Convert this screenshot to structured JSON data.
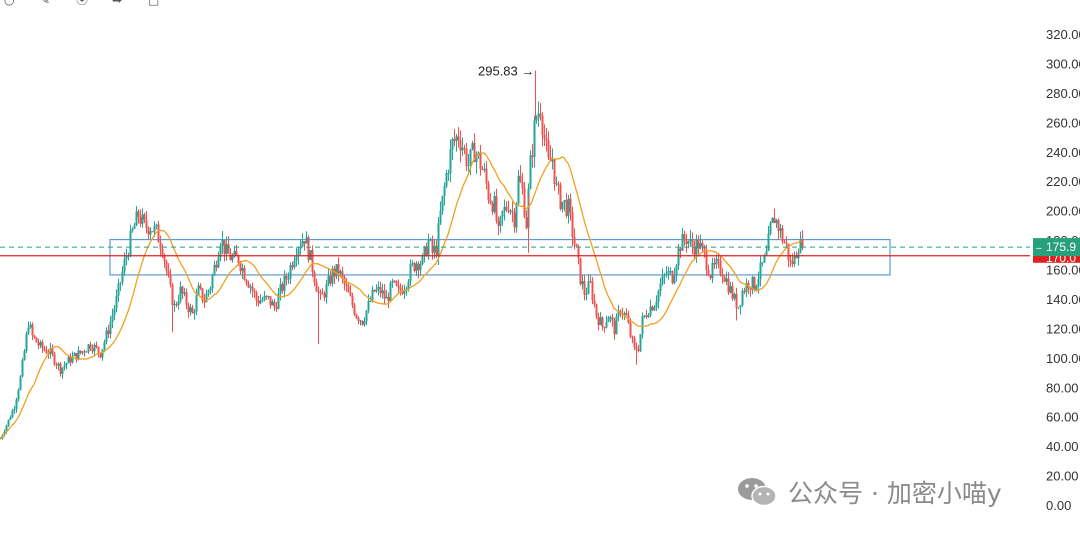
{
  "toolbar": {
    "icons": [
      "cursor-icon",
      "pencil-icon",
      "magnet-icon",
      "pin-icon",
      "trash-icon"
    ]
  },
  "chart_data": {
    "type": "candlestick",
    "title": "",
    "y_axis": {
      "position": "right",
      "ticks": [
        "320.00",
        "300.00",
        "280.00",
        "260.00",
        "240.00",
        "220.00",
        "200.00",
        "180.00",
        "160.00",
        "140.00",
        "120.00",
        "100.00",
        "80.00",
        "60.00",
        "40.00",
        "20.00",
        "0.00"
      ],
      "ylim": [
        0,
        320
      ]
    },
    "x_axis": {
      "visible": false
    },
    "current_price": {
      "label": "175.9",
      "value": 175.9,
      "color": "#26a17b",
      "line_style": "dashed"
    },
    "horizontal_line": {
      "value": 170.0,
      "color": "#e02020",
      "tag_label": "170.0"
    },
    "range_box": {
      "top": 181.0,
      "bottom": 157.0,
      "color": "#5b9bd5"
    },
    "annotation": {
      "label": "295.83",
      "arrow": "→",
      "value": 295.83
    },
    "moving_average": {
      "color": "#f0a020"
    },
    "candle_colors": {
      "up": "#26a69a",
      "down": "#ef5350"
    },
    "close_anchors": [
      [
        0,
        46
      ],
      [
        8,
        58
      ],
      [
        14,
        68
      ],
      [
        20,
        87
      ],
      [
        24,
        105
      ],
      [
        28,
        125
      ],
      [
        32,
        115
      ],
      [
        40,
        108
      ],
      [
        50,
        104
      ],
      [
        60,
        93
      ],
      [
        70,
        100
      ],
      [
        80,
        104
      ],
      [
        90,
        110
      ],
      [
        100,
        104
      ],
      [
        108,
        120
      ],
      [
        116,
        140
      ],
      [
        124,
        165
      ],
      [
        132,
        186
      ],
      [
        138,
        198
      ],
      [
        144,
        190
      ],
      [
        150,
        190
      ],
      [
        156,
        186
      ],
      [
        162,
        176
      ],
      [
        166,
        160
      ],
      [
        170,
        146
      ],
      [
        174,
        135
      ],
      [
        180,
        146
      ],
      [
        186,
        138
      ],
      [
        192,
        130
      ],
      [
        198,
        146
      ],
      [
        204,
        140
      ],
      [
        210,
        150
      ],
      [
        216,
        168
      ],
      [
        220,
        182
      ],
      [
        226,
        172
      ],
      [
        232,
        168
      ],
      [
        238,
        168
      ],
      [
        244,
        158
      ],
      [
        250,
        150
      ],
      [
        256,
        140
      ],
      [
        262,
        140
      ],
      [
        268,
        140
      ],
      [
        274,
        135
      ],
      [
        280,
        146
      ],
      [
        288,
        158
      ],
      [
        296,
        176
      ],
      [
        304,
        183
      ],
      [
        310,
        168
      ],
      [
        316,
        150
      ],
      [
        320,
        140
      ],
      [
        326,
        148
      ],
      [
        332,
        158
      ],
      [
        338,
        160
      ],
      [
        344,
        150
      ],
      [
        350,
        140
      ],
      [
        356,
        130
      ],
      [
        362,
        126
      ],
      [
        368,
        136
      ],
      [
        374,
        146
      ],
      [
        380,
        146
      ],
      [
        386,
        140
      ],
      [
        392,
        150
      ],
      [
        398,
        145
      ],
      [
        404,
        150
      ],
      [
        410,
        160
      ],
      [
        416,
        166
      ],
      [
        422,
        166
      ],
      [
        428,
        180
      ],
      [
        432,
        172
      ],
      [
        436,
        175
      ],
      [
        440,
        198
      ],
      [
        446,
        225
      ],
      [
        452,
        246
      ],
      [
        458,
        252
      ],
      [
        462,
        245
      ],
      [
        468,
        232
      ],
      [
        474,
        242
      ],
      [
        478,
        236
      ],
      [
        484,
        225
      ],
      [
        488,
        212
      ],
      [
        494,
        204
      ],
      [
        498,
        184
      ],
      [
        502,
        198
      ],
      [
        508,
        206
      ],
      [
        514,
        196
      ],
      [
        518,
        222
      ],
      [
        522,
        214
      ],
      [
        526,
        192
      ],
      [
        530,
        232
      ],
      [
        535,
        262
      ],
      [
        540,
        272
      ],
      [
        544,
        250
      ],
      [
        548,
        232
      ],
      [
        552,
        236
      ],
      [
        556,
        215
      ],
      [
        560,
        208
      ],
      [
        564,
        205
      ],
      [
        568,
        202
      ],
      [
        572,
        186
      ],
      [
        576,
        172
      ],
      [
        580,
        155
      ],
      [
        584,
        145
      ],
      [
        590,
        150
      ],
      [
        596,
        130
      ],
      [
        602,
        122
      ],
      [
        608,
        130
      ],
      [
        614,
        120
      ],
      [
        620,
        134
      ],
      [
        626,
        128
      ],
      [
        630,
        116
      ],
      [
        634,
        106
      ],
      [
        638,
        108
      ],
      [
        642,
        126
      ],
      [
        648,
        134
      ],
      [
        654,
        138
      ],
      [
        660,
        150
      ],
      [
        666,
        158
      ],
      [
        672,
        156
      ],
      [
        676,
        168
      ],
      [
        680,
        178
      ],
      [
        686,
        182
      ],
      [
        692,
        176
      ],
      [
        698,
        178
      ],
      [
        704,
        170
      ],
      [
        710,
        158
      ],
      [
        716,
        163
      ],
      [
        722,
        160
      ],
      [
        728,
        150
      ],
      [
        734,
        140
      ],
      [
        738,
        136
      ],
      [
        742,
        146
      ],
      [
        748,
        152
      ],
      [
        754,
        150
      ],
      [
        760,
        160
      ],
      [
        766,
        170
      ],
      [
        770,
        188
      ],
      [
        774,
        196
      ],
      [
        778,
        190
      ],
      [
        782,
        182
      ],
      [
        786,
        176
      ],
      [
        790,
        164
      ],
      [
        794,
        168
      ],
      [
        798,
        178
      ],
      [
        802,
        175.9
      ]
    ],
    "wick_spikes": [
      [
        318,
        110
      ],
      [
        535,
        295.83
      ],
      [
        528,
        172
      ],
      [
        172,
        118
      ],
      [
        636,
        96
      ],
      [
        736,
        126
      ]
    ]
  },
  "watermark": {
    "text": "公众号 · 加密小喵y"
  }
}
